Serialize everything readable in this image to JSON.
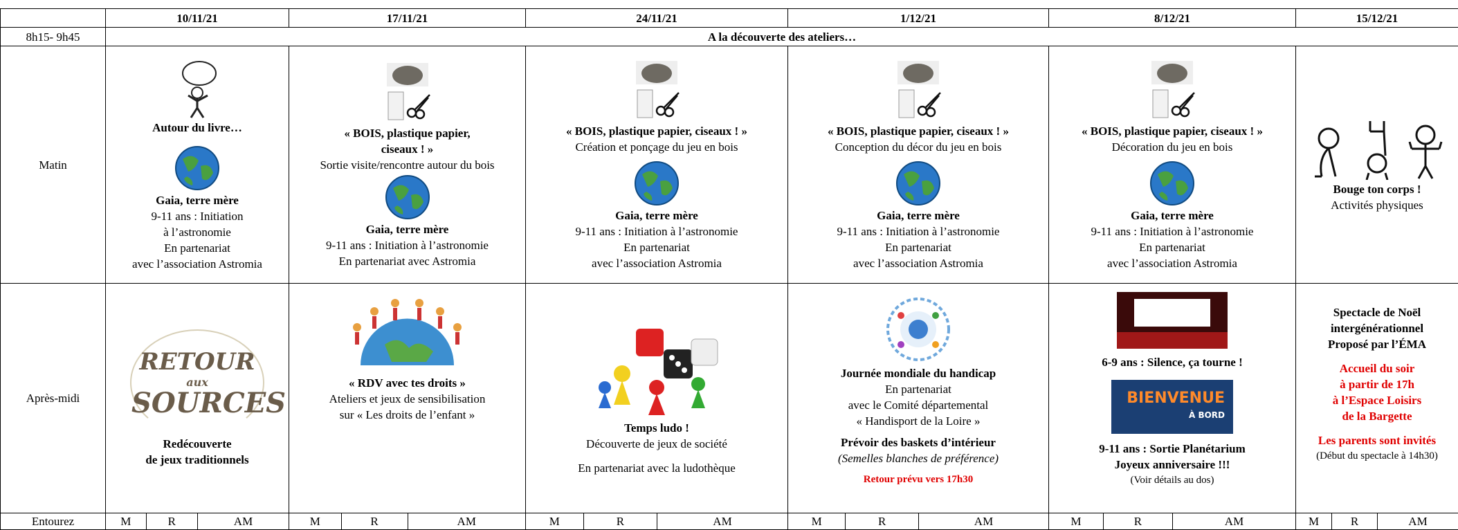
{
  "header": {
    "dates": [
      "10/11/21",
      "17/11/21",
      "24/11/21",
      "1/12/21",
      "8/12/21",
      "15/12/21"
    ]
  },
  "intro": {
    "time": "8h15- 9h45",
    "text": "A la découverte des ateliers…"
  },
  "morning": {
    "label": "Matin",
    "cells": [
      [
        "Autour du livre…",
        "Gaia, terre mère",
        "9-11 ans : Initiation",
        "à l’astronomie",
        "En partenariat",
        "avec l’association Astromia"
      ],
      [
        "« BOIS, plastique papier,",
        "ciseaux ! »",
        "Sortie visite/rencontre autour du bois",
        "Gaia, terre mère",
        "9-11 ans : Initiation à l’astronomie",
        "En partenariat avec  Astromia"
      ],
      [
        "« BOIS, plastique papier, ciseaux ! »",
        "Création et ponçage du jeu en bois",
        "Gaia, terre mère",
        "9-11 ans : Initiation à l’astronomie",
        "En partenariat",
        "avec l’association Astromia"
      ],
      [
        "« BOIS, plastique papier, ciseaux ! »",
        "Conception du décor du jeu en bois",
        "Gaia, terre mère",
        "9-11 ans : Initiation à l’astronomie",
        "En partenariat",
        "avec l’association Astromia"
      ],
      [
        "« BOIS, plastique papier, ciseaux ! »",
        "Décoration du jeu en bois",
        "Gaia, terre mère",
        "9-11 ans : Initiation à l’astronomie",
        "En partenariat",
        "avec l’association Astromia"
      ],
      [
        "Bouge ton corps !",
        "Activités physiques"
      ]
    ]
  },
  "afternoon": {
    "label": "Après-midi",
    "cells": [
      [
        "RETOUR",
        "aux",
        "SOURCES",
        "Redécouverte",
        "de jeux traditionnels"
      ],
      [
        "« RDV avec tes droits »",
        "Ateliers et jeux de sensibilisation",
        "sur « Les droits de l’enfant »"
      ],
      [
        "Temps ludo !",
        "Découverte de jeux de société",
        "En partenariat avec la ludothèque"
      ],
      [
        "Journée mondiale du handicap",
        "En partenariat",
        "avec le Comité départemental",
        "« Handisport de la Loire »",
        "Prévoir des baskets d’intérieur",
        "(Semelles blanches de préférence)",
        "Retour prévu vers 17h30"
      ],
      [
        "6-9 ans : Silence, ça tourne !",
        "BIENVENUE",
        "À BORD",
        "9-11 ans : Sortie Planétarium",
        "Joyeux anniversaire !!!",
        "(Voir détails au dos)"
      ],
      [
        "Spectacle de Noël",
        "intergénérationnel",
        "Proposé par l’ÉMA",
        "Accueil du soir",
        "à partir de 17h",
        "à l’Espace Loisirs",
        "de la Bargette",
        "Les parents sont invités",
        "(Début du spectacle à 14h30)"
      ]
    ]
  },
  "footer": {
    "label": "Entourez",
    "options": [
      "M",
      "R",
      "AM"
    ]
  }
}
